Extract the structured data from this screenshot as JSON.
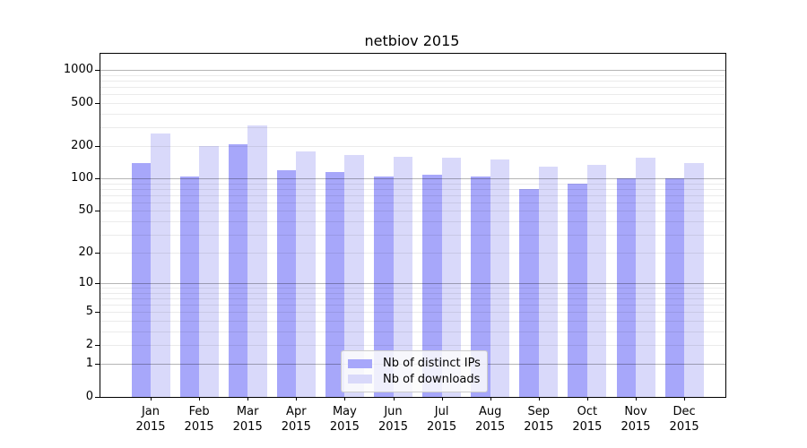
{
  "chart_data": {
    "type": "bar",
    "title": "netbiov 2015",
    "categories": [
      "Jan 2015",
      "Feb 2015",
      "Mar 2015",
      "Apr 2015",
      "May 2015",
      "Jun 2015",
      "Jul 2015",
      "Aug 2015",
      "Sep 2015",
      "Oct 2015",
      "Nov 2015",
      "Dec 2015"
    ],
    "series": [
      {
        "name": "Nb of distinct IPs",
        "color": "#a7a7fa",
        "values": [
          140,
          105,
          208,
          120,
          115,
          105,
          108,
          105,
          80,
          90,
          100,
          100
        ]
      },
      {
        "name": "Nb of downloads",
        "color": "#d9d9fa",
        "values": [
          260,
          200,
          310,
          178,
          165,
          160,
          155,
          150,
          130,
          135,
          155,
          140
        ]
      }
    ],
    "yscale": "log1p",
    "yticks": [
      0,
      1,
      2,
      5,
      10,
      20,
      50,
      100,
      200,
      500,
      1000
    ],
    "ymax": 1415,
    "grid": true,
    "legend_position": "lower-center",
    "colors": {
      "background": "#ffffff",
      "axis": "#000000",
      "grid_minor": "#ebebeb",
      "grid_major": "#b5b5b5",
      "legend_border": "#cccccc",
      "text": "#000000"
    }
  }
}
